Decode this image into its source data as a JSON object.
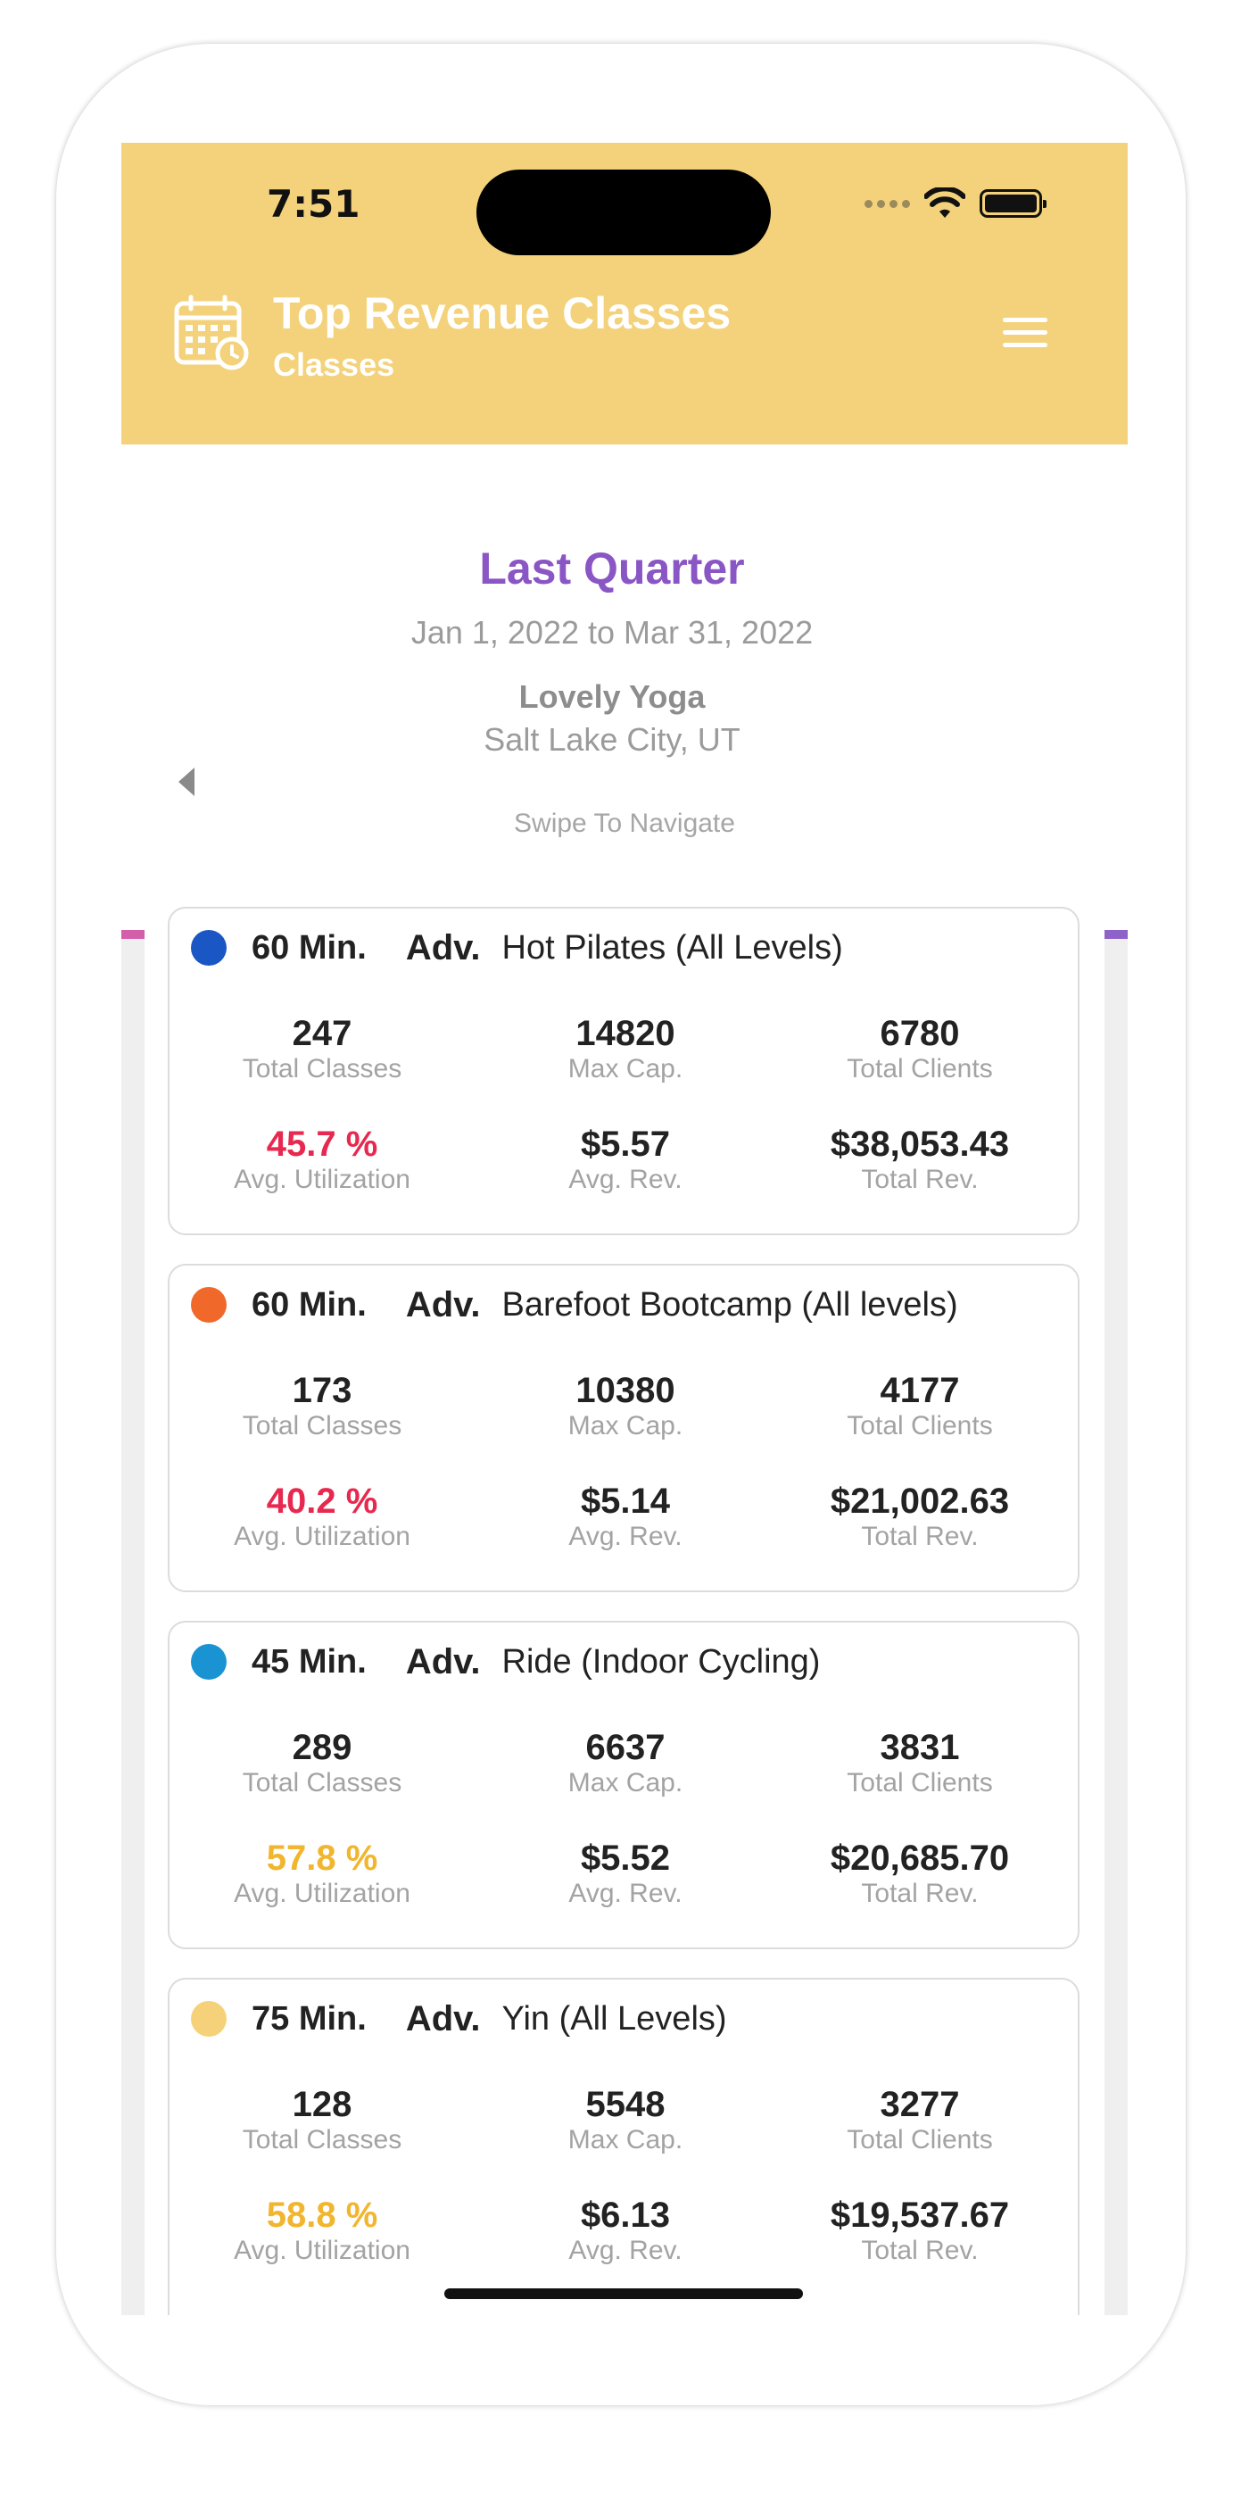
{
  "status_bar": {
    "time": "7:51"
  },
  "header": {
    "title": "Top Revenue Classes",
    "subtitle": "Classes",
    "icon": "calendar-clock-icon",
    "menu_icon": "hamburger-menu-icon",
    "background_color": "#f3d27b"
  },
  "period": {
    "title": "Last Quarter",
    "dates": "Jan 1, 2022 to Mar 31, 2022",
    "studio": "Lovely Yoga",
    "location": "Salt Lake City, UT",
    "prev_icon": "chevron-left-icon"
  },
  "swipe_hint": "Swipe To Navigate",
  "labels": {
    "total_classes": "Total Classes",
    "max_cap": "Max Cap.",
    "total_clients": "Total Clients",
    "avg_utilization": "Avg. Utilization",
    "avg_rev": "Avg. Rev.",
    "total_rev": "Total Rev."
  },
  "classes": [
    {
      "dot_color": "#1a56c4",
      "duration": "60 Min.",
      "level": "Adv.",
      "name": "Hot Pilates  (All Levels)",
      "total_classes": "247",
      "max_cap": "14820",
      "total_clients": "6780",
      "avg_utilization": "45.7 %",
      "utilization_color": "#e8294f",
      "avg_rev": "$5.57",
      "total_rev": "$38,053.43"
    },
    {
      "dot_color": "#f0692b",
      "duration": "60 Min.",
      "level": "Adv.",
      "name": "Barefoot Bootcamp (All levels)",
      "total_classes": "173",
      "max_cap": "10380",
      "total_clients": "4177",
      "avg_utilization": "40.2 %",
      "utilization_color": "#e8294f",
      "avg_rev": "$5.14",
      "total_rev": "$21,002.63"
    },
    {
      "dot_color": "#1a93d3",
      "duration": "45 Min.",
      "level": "Adv.",
      "name": "Ride (Indoor Cycling)",
      "total_classes": "289",
      "max_cap": "6637",
      "total_clients": "3831",
      "avg_utilization": "57.8 %",
      "utilization_color": "#f2b52e",
      "avg_rev": "$5.52",
      "total_rev": "$20,685.70"
    },
    {
      "dot_color": "#f5d27a",
      "duration": "75 Min.",
      "level": "Adv.",
      "name": "Yin (All Levels)",
      "total_classes": "128",
      "max_cap": "5548",
      "total_clients": "3277",
      "avg_utilization": "58.8 %",
      "utilization_color": "#f2b52e",
      "avg_rev": "$6.13",
      "total_rev": "$19,537.67"
    }
  ]
}
